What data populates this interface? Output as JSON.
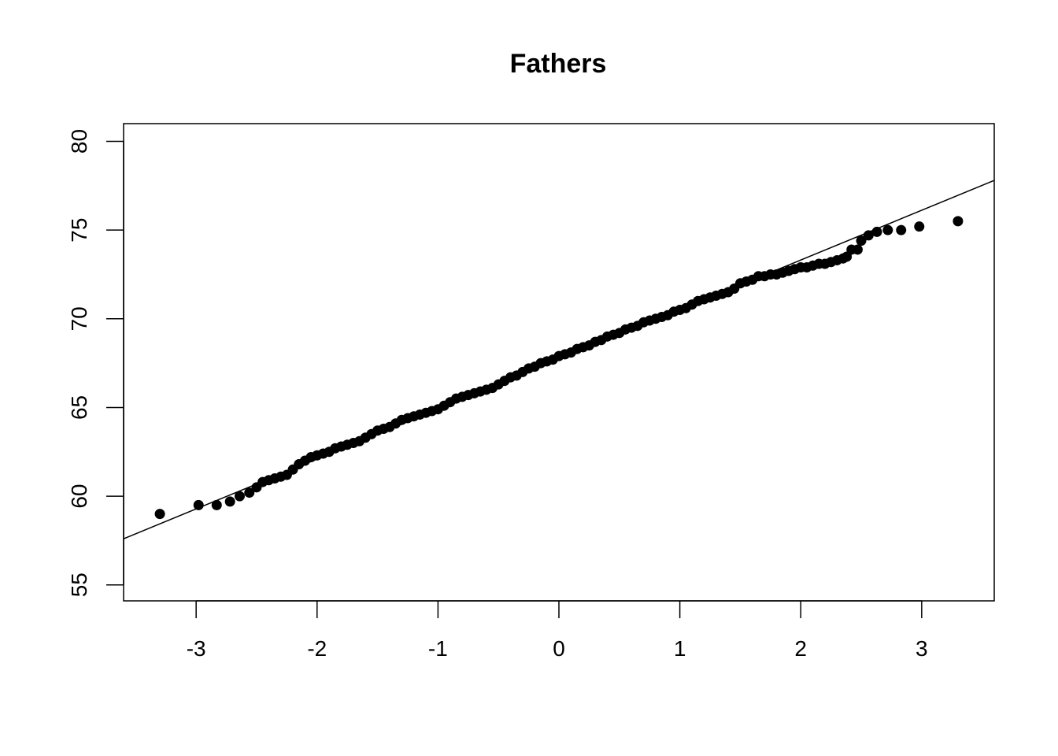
{
  "chart_data": {
    "type": "scatter",
    "title": "Fathers",
    "xlabel": "",
    "ylabel": "",
    "xlim": [
      -3.6,
      3.6
    ],
    "ylim": [
      54.1,
      81.0
    ],
    "x_ticks": [
      -3,
      -2,
      -1,
      0,
      1,
      2,
      3
    ],
    "x_tick_labels": [
      "-3",
      "-2",
      "-1",
      "0",
      "1",
      "2",
      "3"
    ],
    "y_ticks": [
      55,
      60,
      65,
      70,
      75,
      80
    ],
    "y_tick_labels": [
      "55",
      "60",
      "65",
      "70",
      "75",
      "80"
    ],
    "grid": false,
    "legend": "none",
    "point_color": "#000000",
    "line_color": "#000000",
    "reference_line": {
      "x": [
        -3.6,
        3.6
      ],
      "y": [
        57.6,
        77.8
      ]
    },
    "series": [
      {
        "points": [
          [
            -3.3,
            59.0
          ],
          [
            -2.98,
            59.5
          ],
          [
            -2.83,
            59.5
          ],
          [
            -2.72,
            59.7
          ],
          [
            -2.64,
            60.0
          ],
          [
            -2.56,
            60.2
          ],
          [
            -2.5,
            60.5
          ],
          [
            -2.45,
            60.8
          ],
          [
            -2.4,
            60.9
          ],
          [
            -2.35,
            61.0
          ],
          [
            -2.3,
            61.1
          ],
          [
            -2.25,
            61.2
          ],
          [
            -2.2,
            61.5
          ],
          [
            -2.15,
            61.8
          ],
          [
            -2.1,
            62.0
          ],
          [
            -2.05,
            62.2
          ],
          [
            -2.0,
            62.3
          ],
          [
            -1.95,
            62.4
          ],
          [
            -1.9,
            62.5
          ],
          [
            -1.85,
            62.7
          ],
          [
            -1.8,
            62.8
          ],
          [
            -1.75,
            62.9
          ],
          [
            -1.7,
            63.0
          ],
          [
            -1.65,
            63.1
          ],
          [
            -1.6,
            63.3
          ],
          [
            -1.55,
            63.5
          ],
          [
            -1.5,
            63.7
          ],
          [
            -1.45,
            63.8
          ],
          [
            -1.4,
            63.9
          ],
          [
            -1.35,
            64.1
          ],
          [
            -1.3,
            64.3
          ],
          [
            -1.25,
            64.4
          ],
          [
            -1.2,
            64.5
          ],
          [
            -1.15,
            64.6
          ],
          [
            -1.1,
            64.7
          ],
          [
            -1.05,
            64.8
          ],
          [
            -1.0,
            64.9
          ],
          [
            -0.95,
            65.1
          ],
          [
            -0.9,
            65.3
          ],
          [
            -0.85,
            65.5
          ],
          [
            -0.8,
            65.6
          ],
          [
            -0.75,
            65.7
          ],
          [
            -0.7,
            65.8
          ],
          [
            -0.65,
            65.9
          ],
          [
            -0.6,
            66.0
          ],
          [
            -0.55,
            66.1
          ],
          [
            -0.5,
            66.3
          ],
          [
            -0.45,
            66.5
          ],
          [
            -0.4,
            66.7
          ],
          [
            -0.35,
            66.8
          ],
          [
            -0.3,
            67.0
          ],
          [
            -0.25,
            67.2
          ],
          [
            -0.2,
            67.3
          ],
          [
            -0.15,
            67.5
          ],
          [
            -0.1,
            67.6
          ],
          [
            -0.05,
            67.7
          ],
          [
            0.0,
            67.9
          ],
          [
            0.05,
            68.0
          ],
          [
            0.1,
            68.1
          ],
          [
            0.15,
            68.3
          ],
          [
            0.2,
            68.4
          ],
          [
            0.25,
            68.5
          ],
          [
            0.3,
            68.7
          ],
          [
            0.35,
            68.8
          ],
          [
            0.4,
            69.0
          ],
          [
            0.45,
            69.1
          ],
          [
            0.5,
            69.2
          ],
          [
            0.55,
            69.4
          ],
          [
            0.6,
            69.5
          ],
          [
            0.65,
            69.6
          ],
          [
            0.7,
            69.8
          ],
          [
            0.75,
            69.9
          ],
          [
            0.8,
            70.0
          ],
          [
            0.85,
            70.1
          ],
          [
            0.9,
            70.2
          ],
          [
            0.95,
            70.4
          ],
          [
            1.0,
            70.5
          ],
          [
            1.05,
            70.6
          ],
          [
            1.1,
            70.8
          ],
          [
            1.15,
            71.0
          ],
          [
            1.2,
            71.1
          ],
          [
            1.25,
            71.2
          ],
          [
            1.3,
            71.3
          ],
          [
            1.35,
            71.4
          ],
          [
            1.4,
            71.5
          ],
          [
            1.45,
            71.7
          ],
          [
            1.5,
            72.0
          ],
          [
            1.55,
            72.1
          ],
          [
            1.6,
            72.2
          ],
          [
            1.65,
            72.4
          ],
          [
            1.7,
            72.4
          ],
          [
            1.75,
            72.5
          ],
          [
            1.8,
            72.5
          ],
          [
            1.85,
            72.6
          ],
          [
            1.9,
            72.7
          ],
          [
            1.95,
            72.8
          ],
          [
            2.0,
            72.9
          ],
          [
            2.05,
            72.9
          ],
          [
            2.1,
            73.0
          ],
          [
            2.15,
            73.1
          ],
          [
            2.2,
            73.1
          ],
          [
            2.25,
            73.2
          ],
          [
            2.3,
            73.3
          ],
          [
            2.35,
            73.4
          ],
          [
            2.38,
            73.5
          ],
          [
            2.42,
            73.9
          ],
          [
            2.47,
            73.9
          ],
          [
            2.5,
            74.4
          ],
          [
            2.56,
            74.7
          ],
          [
            2.63,
            74.9
          ],
          [
            2.72,
            75.0
          ],
          [
            2.83,
            75.0
          ],
          [
            2.98,
            75.2
          ],
          [
            3.3,
            75.5
          ]
        ]
      }
    ]
  }
}
